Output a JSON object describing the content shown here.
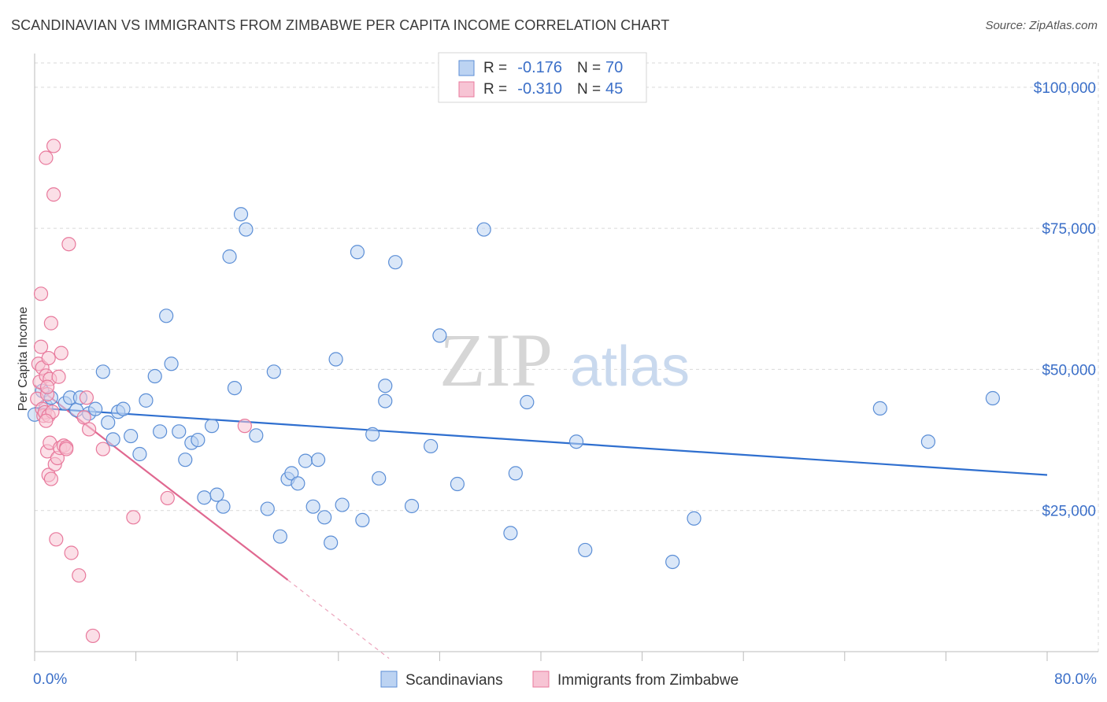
{
  "title": "SCANDINAVIAN VS IMMIGRANTS FROM ZIMBABWE PER CAPITA INCOME CORRELATION CHART",
  "source": "Source: ZipAtlas.com",
  "watermark": {
    "zip": "ZIP",
    "atlas": "atlas"
  },
  "colors": {
    "blue": "#5b8ed6",
    "blue_fill": "#bcd3f2",
    "blue_line": "#2f6fcf",
    "pink": "#e8799c",
    "pink_fill": "#f7c4d4",
    "pink_line": "#e06890",
    "axis_text": "#3b6fc8",
    "grid": "#d9d9d9"
  },
  "legend_top": [
    {
      "r_label": "R =",
      "r_value": "-0.176",
      "n_label": "N =",
      "n_value": "70",
      "color": "blue"
    },
    {
      "r_label": "R =",
      "r_value": "-0.310",
      "n_label": "N =",
      "n_value": "45",
      "color": "pink"
    }
  ],
  "chart_data": {
    "type": "scatter",
    "title": "SCANDINAVIAN VS IMMIGRANTS FROM ZIMBABWE PER CAPITA INCOME CORRELATION CHART",
    "xlabel": "",
    "ylabel": "Per Capita Income",
    "xlim": [
      0,
      80
    ],
    "ylim": [
      0,
      105000
    ],
    "x_tick_labels": [
      "0.0%",
      "80.0%"
    ],
    "y_ticks": [
      25000,
      50000,
      75000,
      100000
    ],
    "y_tick_labels": [
      "$25,000",
      "$50,000",
      "$75,000",
      "$100,000"
    ],
    "grid": true,
    "legend_position": "bottom-center",
    "series": [
      {
        "name": "Scandinavians",
        "color": "blue",
        "trend": {
          "x0": 0,
          "y0": 43200,
          "x1": 80,
          "y1": 31300
        },
        "points": [
          [
            0.0,
            42000
          ],
          [
            0.6,
            46200
          ],
          [
            0.9,
            43500
          ],
          [
            1.3,
            45000
          ],
          [
            2.4,
            44000
          ],
          [
            2.8,
            45000
          ],
          [
            3.3,
            42800
          ],
          [
            3.6,
            45000
          ],
          [
            4.3,
            42200
          ],
          [
            4.8,
            43000
          ],
          [
            5.4,
            49600
          ],
          [
            5.8,
            40600
          ],
          [
            6.2,
            37600
          ],
          [
            6.6,
            42500
          ],
          [
            7.0,
            43000
          ],
          [
            7.6,
            38200
          ],
          [
            8.3,
            35000
          ],
          [
            8.8,
            44500
          ],
          [
            9.5,
            48800
          ],
          [
            9.9,
            39000
          ],
          [
            10.4,
            59500
          ],
          [
            10.8,
            51000
          ],
          [
            11.4,
            39000
          ],
          [
            11.9,
            34000
          ],
          [
            12.4,
            37000
          ],
          [
            12.9,
            37500
          ],
          [
            13.4,
            27300
          ],
          [
            14.0,
            40000
          ],
          [
            14.4,
            27800
          ],
          [
            14.9,
            25700
          ],
          [
            15.4,
            70000
          ],
          [
            15.8,
            46700
          ],
          [
            16.3,
            77500
          ],
          [
            16.7,
            74800
          ],
          [
            17.5,
            38300
          ],
          [
            18.4,
            25300
          ],
          [
            18.9,
            49600
          ],
          [
            19.4,
            20400
          ],
          [
            20.0,
            30600
          ],
          [
            20.3,
            31600
          ],
          [
            20.8,
            29800
          ],
          [
            21.4,
            33800
          ],
          [
            22.0,
            25700
          ],
          [
            22.4,
            34000
          ],
          [
            22.9,
            23800
          ],
          [
            23.4,
            19300
          ],
          [
            23.8,
            51800
          ],
          [
            24.3,
            26000
          ],
          [
            25.5,
            70800
          ],
          [
            25.9,
            23300
          ],
          [
            26.7,
            38500
          ],
          [
            27.2,
            30700
          ],
          [
            27.7,
            47100
          ],
          [
            27.7,
            44400
          ],
          [
            28.5,
            69000
          ],
          [
            29.8,
            25800
          ],
          [
            31.3,
            36400
          ],
          [
            32.0,
            56000
          ],
          [
            33.4,
            29700
          ],
          [
            35.5,
            74800
          ],
          [
            37.6,
            21000
          ],
          [
            38.0,
            31600
          ],
          [
            38.9,
            44200
          ],
          [
            42.8,
            37200
          ],
          [
            43.5,
            18000
          ],
          [
            50.4,
            15900
          ],
          [
            52.1,
            23600
          ],
          [
            66.8,
            43100
          ],
          [
            70.6,
            37200
          ],
          [
            75.7,
            44900
          ]
        ]
      },
      {
        "name": "Immigrants from Zimbabwe",
        "color": "pink",
        "trend": {
          "x0": 0,
          "y0": 47200,
          "x1": 20,
          "y1": 12700
        },
        "trend_dashed": {
          "x0": 20,
          "y0": 12700,
          "x1": 28,
          "y1": -1200
        },
        "points": [
          [
            0.2,
            44800
          ],
          [
            0.3,
            51000
          ],
          [
            0.4,
            47800
          ],
          [
            0.5,
            63400
          ],
          [
            0.5,
            54000
          ],
          [
            0.6,
            50300
          ],
          [
            0.6,
            43000
          ],
          [
            0.7,
            41800
          ],
          [
            0.8,
            42400
          ],
          [
            0.9,
            48900
          ],
          [
            0.9,
            87500
          ],
          [
            1.0,
            45600
          ],
          [
            1.0,
            35500
          ],
          [
            1.1,
            41800
          ],
          [
            1.1,
            52000
          ],
          [
            1.1,
            31300
          ],
          [
            1.2,
            48300
          ],
          [
            1.2,
            37000
          ],
          [
            1.3,
            58200
          ],
          [
            1.3,
            30600
          ],
          [
            1.4,
            42500
          ],
          [
            1.5,
            89600
          ],
          [
            1.5,
            81000
          ],
          [
            1.6,
            33200
          ],
          [
            1.7,
            19900
          ],
          [
            1.8,
            34300
          ],
          [
            1.9,
            48700
          ],
          [
            2.0,
            36100
          ],
          [
            2.1,
            52900
          ],
          [
            2.3,
            36500
          ],
          [
            2.5,
            36200
          ],
          [
            2.5,
            35900
          ],
          [
            2.7,
            72200
          ],
          [
            2.9,
            17500
          ],
          [
            3.5,
            13500
          ],
          [
            3.9,
            41500
          ],
          [
            4.1,
            45000
          ],
          [
            4.3,
            39400
          ],
          [
            4.6,
            2800
          ],
          [
            5.4,
            35900
          ],
          [
            7.8,
            23800
          ],
          [
            10.5,
            27200
          ],
          [
            16.6,
            40000
          ],
          [
            1.0,
            46900
          ],
          [
            0.9,
            40900
          ]
        ]
      }
    ]
  },
  "legend_bottom": [
    {
      "label": "Scandinavians",
      "color": "blue"
    },
    {
      "label": "Immigrants from Zimbabwe",
      "color": "pink"
    }
  ]
}
